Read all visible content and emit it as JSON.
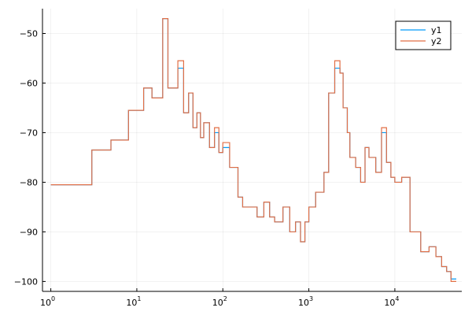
{
  "chart_data": {
    "type": "line",
    "step": true,
    "title": "",
    "xlabel": "",
    "ylabel": "",
    "xscale": "log10",
    "xlim": [
      0.8,
      60000
    ],
    "ylim": [
      -102,
      -45
    ],
    "grid": true,
    "legend_position": "top-right",
    "x_ticks": [
      {
        "value": 1,
        "base": "10",
        "exp": "0"
      },
      {
        "value": 10,
        "base": "10",
        "exp": "1"
      },
      {
        "value": 100,
        "base": "10",
        "exp": "2"
      },
      {
        "value": 1000,
        "base": "10",
        "exp": "3"
      },
      {
        "value": 10000,
        "base": "10",
        "exp": "4"
      }
    ],
    "y_ticks": [
      {
        "value": -50,
        "label": "−50"
      },
      {
        "value": -60,
        "label": "−60"
      },
      {
        "value": -70,
        "label": "−70"
      },
      {
        "value": -80,
        "label": "−80"
      },
      {
        "value": -90,
        "label": "−90"
      },
      {
        "value": -100,
        "label": "−100"
      }
    ],
    "series": [
      {
        "name": "y1",
        "color": "#009af9",
        "x": [
          1,
          3,
          5,
          8,
          12,
          15,
          20,
          23,
          30,
          35,
          40,
          45,
          50,
          55,
          60,
          70,
          80,
          90,
          100,
          120,
          150,
          170,
          200,
          250,
          300,
          350,
          400,
          500,
          600,
          700,
          800,
          900,
          1000,
          1200,
          1500,
          1700,
          2000,
          2300,
          2500,
          2800,
          3000,
          3500,
          4000,
          4500,
          5000,
          6000,
          7000,
          8000,
          9000,
          10000,
          12000,
          15000,
          20000,
          25000,
          30000,
          35000,
          40000,
          45000
        ],
        "y": [
          -80.5,
          -73.5,
          -71.5,
          -65.5,
          -61,
          -63,
          -47,
          -61,
          -57,
          -66,
          -62,
          -69,
          -66,
          -71,
          -68,
          -73,
          -70,
          -74,
          -73,
          -77,
          -83,
          -85,
          -85,
          -87,
          -84,
          -87,
          -88,
          -85,
          -90,
          -88,
          -92,
          -88,
          -85,
          -82,
          -78,
          -62,
          -57,
          -58,
          -65,
          -70,
          -75,
          -77,
          -80,
          -73,
          -75,
          -78,
          -70,
          -76,
          -79,
          -80,
          -79,
          -90,
          -94,
          -93,
          -95,
          -97,
          -98,
          -99.5
        ]
      },
      {
        "name": "y2",
        "color": "#e26f46",
        "x": [
          1,
          3,
          5,
          8,
          12,
          15,
          20,
          23,
          30,
          35,
          40,
          45,
          50,
          55,
          60,
          70,
          80,
          90,
          100,
          120,
          150,
          170,
          200,
          250,
          300,
          350,
          400,
          500,
          600,
          700,
          800,
          900,
          1000,
          1200,
          1500,
          1700,
          2000,
          2300,
          2500,
          2800,
          3000,
          3500,
          4000,
          4500,
          5000,
          6000,
          7000,
          8000,
          9000,
          10000,
          12000,
          15000,
          20000,
          25000,
          30000,
          35000,
          40000,
          45000
        ],
        "y": [
          -80.5,
          -73.5,
          -71.5,
          -65.5,
          -61,
          -63,
          -47,
          -61,
          -55.5,
          -66,
          -62,
          -69,
          -66,
          -71,
          -68,
          -73,
          -69,
          -74,
          -72,
          -77,
          -83,
          -85,
          -85,
          -87,
          -84,
          -87,
          -88,
          -85,
          -90,
          -88,
          -92,
          -88,
          -85,
          -82,
          -78,
          -62,
          -55.5,
          -58,
          -65,
          -70,
          -75,
          -77,
          -80,
          -73,
          -75,
          -78,
          -69,
          -76,
          -79,
          -80,
          -79,
          -90,
          -94,
          -93,
          -95,
          -97,
          -98,
          -100
        ]
      }
    ]
  }
}
